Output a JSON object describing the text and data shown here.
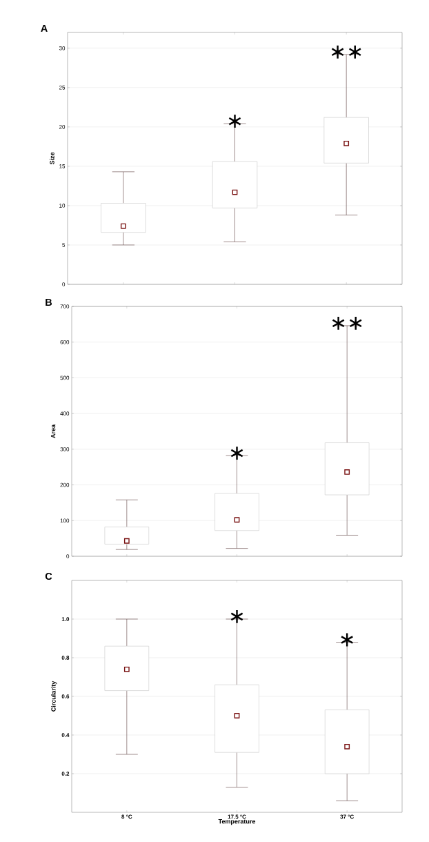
{
  "chart_data": [
    {
      "type": "box",
      "title": "A",
      "ylabel": "Size",
      "categories": [
        null,
        null,
        null
      ],
      "boxes": [
        {
          "low": 5.0,
          "q1": 6.6,
          "median": 7.4,
          "q3": 10.3,
          "high": 14.3
        },
        {
          "low": 5.4,
          "q1": 9.7,
          "median": 11.7,
          "q3": 15.6,
          "high": 20.4
        },
        {
          "low": 8.8,
          "q1": 15.4,
          "median": 17.9,
          "q3": 21.2,
          "high": 29.2
        }
      ],
      "ylim": [
        0,
        32
      ],
      "yticks": [
        0,
        5,
        10,
        15,
        20,
        25,
        30
      ],
      "grid": "y",
      "marker": "square",
      "tick_labels": "y",
      "annotations": [
        {
          "text": "∗",
          "y": 20.4
        },
        {
          "text": "∗∗",
          "y": 29.2
        }
      ]
    },
    {
      "type": "box",
      "title": "B",
      "ylabel": "Area",
      "categories": [
        null,
        null,
        null
      ],
      "boxes": [
        {
          "low": 19,
          "q1": 34,
          "median": 43,
          "q3": 82,
          "high": 158
        },
        {
          "low": 22,
          "q1": 72,
          "median": 102,
          "q3": 176,
          "high": 282
        },
        {
          "low": 59,
          "q1": 172,
          "median": 236,
          "q3": 318,
          "high": 646
        }
      ],
      "ylim": [
        0,
        700
      ],
      "yticks": [
        0,
        100,
        200,
        300,
        400,
        500,
        600,
        700
      ],
      "grid": "y",
      "marker": "square",
      "tick_labels": "y",
      "annotations": [
        {
          "text": "∗",
          "y": 282
        },
        {
          "text": "∗∗",
          "y": 646
        }
      ]
    },
    {
      "type": "box",
      "title": "C",
      "ylabel": "Circularity",
      "xlabel": "Temperature",
      "categories": [
        "8 °C",
        "17.5 °C",
        "37 °C"
      ],
      "boxes": [
        {
          "low": 0.3,
          "q1": 0.63,
          "median": 0.74,
          "q3": 0.86,
          "high": 1.0
        },
        {
          "low": 0.13,
          "q1": 0.31,
          "median": 0.5,
          "q3": 0.66,
          "high": 1.0
        },
        {
          "low": 0.06,
          "q1": 0.2,
          "median": 0.34,
          "q3": 0.53,
          "high": 0.88
        }
      ],
      "ylim": [
        0,
        1.2
      ],
      "yticks": [
        0.2,
        0.4,
        0.6,
        0.8,
        {
          "value": 1.0,
          "label": "1.0"
        }
      ],
      "grid": "y",
      "marker": "square",
      "annotations": [
        {
          "text": "∗",
          "x": "17.5 °C",
          "y": 1.0
        },
        {
          "text": "∗",
          "x": "37 °C",
          "y": 0.88
        }
      ]
    }
  ]
}
